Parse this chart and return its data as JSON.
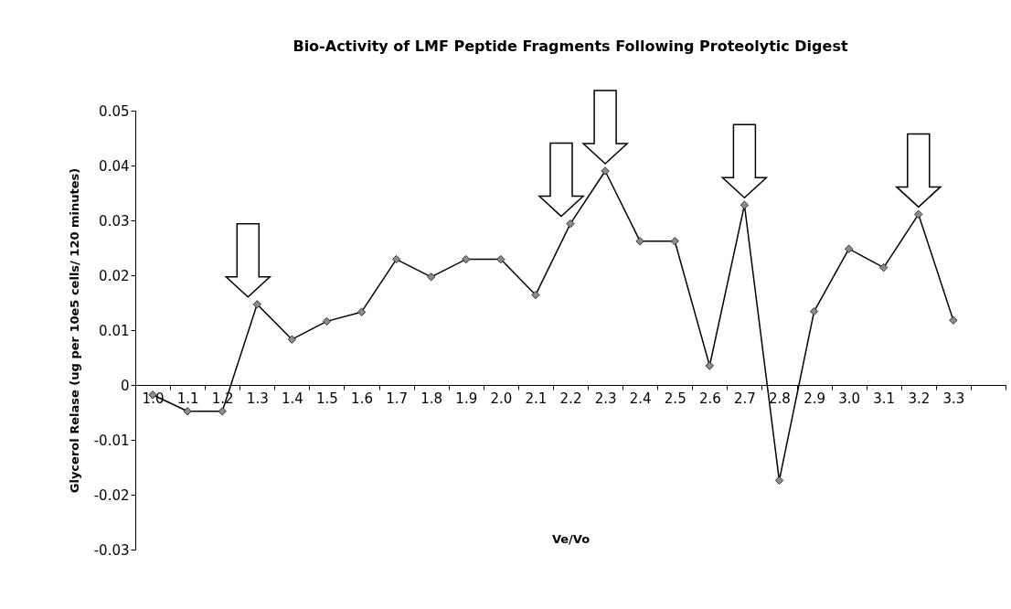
{
  "chart_data": {
    "type": "line",
    "title": "Bio-Activity of LMF Peptide Fragments Following Proteolytic Digest",
    "xlabel": "Ve/Vo",
    "ylabel": "Glycerol Relase (ug per 10e5 cells/ 120 minutes)",
    "categories": [
      "1.0",
      "1.1",
      "1.2",
      "1.3",
      "1.4",
      "1.5",
      "1.6",
      "1.7",
      "1.8",
      "1.9",
      "2.0",
      "2.1",
      "2.2",
      "2.3",
      "2.4",
      "2.5",
      "2.6",
      "2.7",
      "2.8",
      "2.9",
      "3.0",
      "3.1",
      "3.2",
      "3.3",
      null
    ],
    "series": [
      {
        "color": "#000000",
        "values": [
          -0.0018,
          -0.0048,
          -0.0048,
          0.0147,
          0.0083,
          0.0116,
          0.0133,
          0.0229,
          0.0197,
          0.0229,
          0.0229,
          0.0164,
          0.0294,
          0.039,
          0.0262,
          0.0262,
          0.0035,
          0.0328,
          -0.0174,
          0.0134,
          0.0248,
          0.0214,
          0.0311,
          0.0118,
          null
        ]
      }
    ],
    "ylim": [
      -0.03,
      0.05
    ],
    "yticks": [
      -0.03,
      -0.02,
      -0.01,
      0,
      0.01,
      0.02,
      0.03,
      0.04,
      0.05
    ],
    "marker": "diamond",
    "line_style": "solid",
    "grid": false,
    "legend": false
  }
}
